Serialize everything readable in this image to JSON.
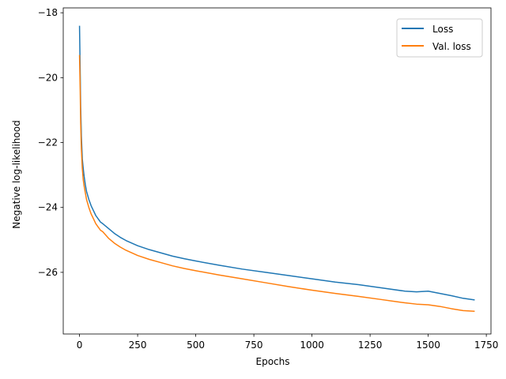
{
  "chart_data": {
    "type": "line",
    "xlabel": "Epochs",
    "ylabel": "Negative log-likelihood",
    "xlim": [
      -70,
      1770
    ],
    "ylim": [
      -27.9,
      -17.85
    ],
    "xticks": [
      0,
      250,
      500,
      750,
      1000,
      1250,
      1500,
      1750
    ],
    "xtick_labels": [
      "0",
      "250",
      "500",
      "750",
      "1000",
      "1250",
      "1500",
      "1750"
    ],
    "yticks": [
      -26,
      -24,
      -22,
      -20,
      -18
    ],
    "ytick_labels": [
      "−26",
      "−24",
      "−22",
      "−20",
      "−18"
    ],
    "grid": false,
    "legend_position": "upper-right",
    "series": [
      {
        "name": "Loss",
        "color": "#1f77b4",
        "x": [
          0,
          3,
          5,
          8,
          12,
          16,
          20,
          25,
          30,
          40,
          50,
          60,
          70,
          80,
          90,
          100,
          125,
          150,
          175,
          200,
          250,
          300,
          350,
          400,
          450,
          500,
          600,
          700,
          800,
          900,
          1000,
          1100,
          1200,
          1300,
          1400,
          1450,
          1500,
          1550,
          1600,
          1650,
          1700
        ],
        "y": [
          -18.4,
          -19.9,
          -20.9,
          -21.8,
          -22.5,
          -22.8,
          -23.05,
          -23.3,
          -23.5,
          -23.75,
          -23.95,
          -24.1,
          -24.25,
          -24.35,
          -24.45,
          -24.5,
          -24.65,
          -24.8,
          -24.92,
          -25.02,
          -25.18,
          -25.3,
          -25.4,
          -25.5,
          -25.58,
          -25.65,
          -25.78,
          -25.9,
          -26.0,
          -26.1,
          -26.2,
          -26.3,
          -26.38,
          -26.48,
          -26.58,
          -26.6,
          -26.58,
          -26.65,
          -26.72,
          -26.8,
          -26.85
        ]
      },
      {
        "name": "Val. loss",
        "color": "#ff7f0e",
        "x": [
          0,
          3,
          5,
          8,
          12,
          16,
          20,
          25,
          30,
          40,
          50,
          60,
          70,
          80,
          90,
          100,
          125,
          150,
          175,
          200,
          250,
          300,
          350,
          400,
          450,
          500,
          600,
          700,
          800,
          900,
          1000,
          1100,
          1200,
          1300,
          1400,
          1450,
          1500,
          1550,
          1600,
          1650,
          1700
        ],
        "y": [
          -19.3,
          -20.4,
          -21.4,
          -22.2,
          -22.8,
          -23.15,
          -23.35,
          -23.55,
          -23.75,
          -24.0,
          -24.2,
          -24.35,
          -24.5,
          -24.6,
          -24.7,
          -24.75,
          -24.95,
          -25.1,
          -25.22,
          -25.32,
          -25.48,
          -25.6,
          -25.7,
          -25.8,
          -25.88,
          -25.95,
          -26.08,
          -26.2,
          -26.32,
          -26.44,
          -26.55,
          -26.65,
          -26.74,
          -26.84,
          -26.94,
          -26.98,
          -27.0,
          -27.05,
          -27.12,
          -27.18,
          -27.2
        ]
      }
    ]
  }
}
